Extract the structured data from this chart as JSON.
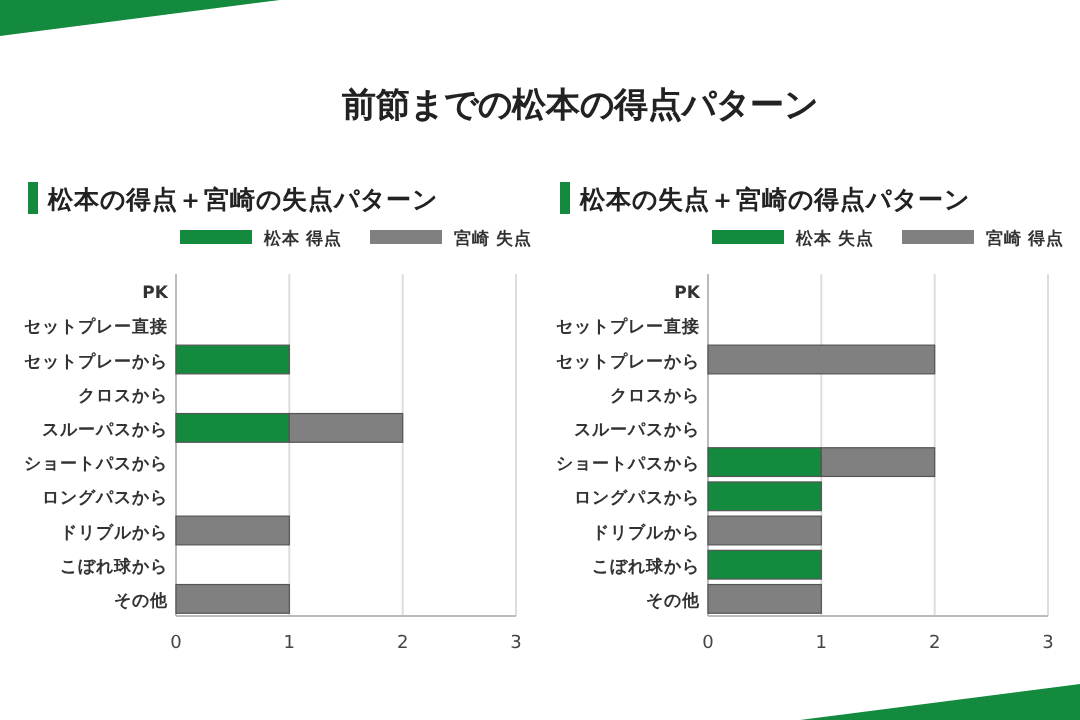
{
  "chart_data": [
    {
      "type": "bar",
      "orientation": "horizontal",
      "stacked": true,
      "title": "前節までの松本の得点パターン",
      "subtitle": "松本の得点＋宮崎の失点パターン",
      "categories": [
        "PK",
        "セットプレー直接",
        "セットプレーから",
        "クロスから",
        "スルーパスから",
        "ショートパスから",
        "ロングパスから",
        "ドリブルから",
        "こぼれ球から",
        "その他"
      ],
      "series": [
        {
          "name": "松本 得点",
          "color": "#138a3e",
          "values": [
            0,
            0,
            1,
            0,
            1,
            0,
            0,
            0,
            0,
            0
          ]
        },
        {
          "name": "宮崎 失点",
          "color": "#808080",
          "values": [
            0,
            0,
            0,
            0,
            1,
            0,
            0,
            1,
            0,
            1
          ]
        }
      ],
      "xlim": [
        0,
        3
      ],
      "xticks": [
        0,
        1,
        2,
        3
      ],
      "grid": "x",
      "legend": "top"
    },
    {
      "type": "bar",
      "orientation": "horizontal",
      "stacked": true,
      "title": "松本の失点＋宮崎の得点パターン",
      "categories": [
        "PK",
        "セットプレー直接",
        "セットプレーから",
        "クロスから",
        "スルーパスから",
        "ショートパスから",
        "ロングパスから",
        "ドリブルから",
        "こぼれ球から",
        "その他"
      ],
      "series": [
        {
          "name": "松本 失点",
          "color": "#138a3e",
          "values": [
            0,
            0,
            0,
            0,
            0,
            1,
            1,
            0,
            1,
            0
          ]
        },
        {
          "name": "宮崎 得点",
          "color": "#808080",
          "values": [
            0,
            0,
            2,
            0,
            0,
            1,
            0,
            1,
            0,
            1
          ]
        }
      ],
      "xlim": [
        0,
        3
      ],
      "xticks": [
        0,
        1,
        2,
        3
      ],
      "grid": "x",
      "legend": "top"
    }
  ]
}
